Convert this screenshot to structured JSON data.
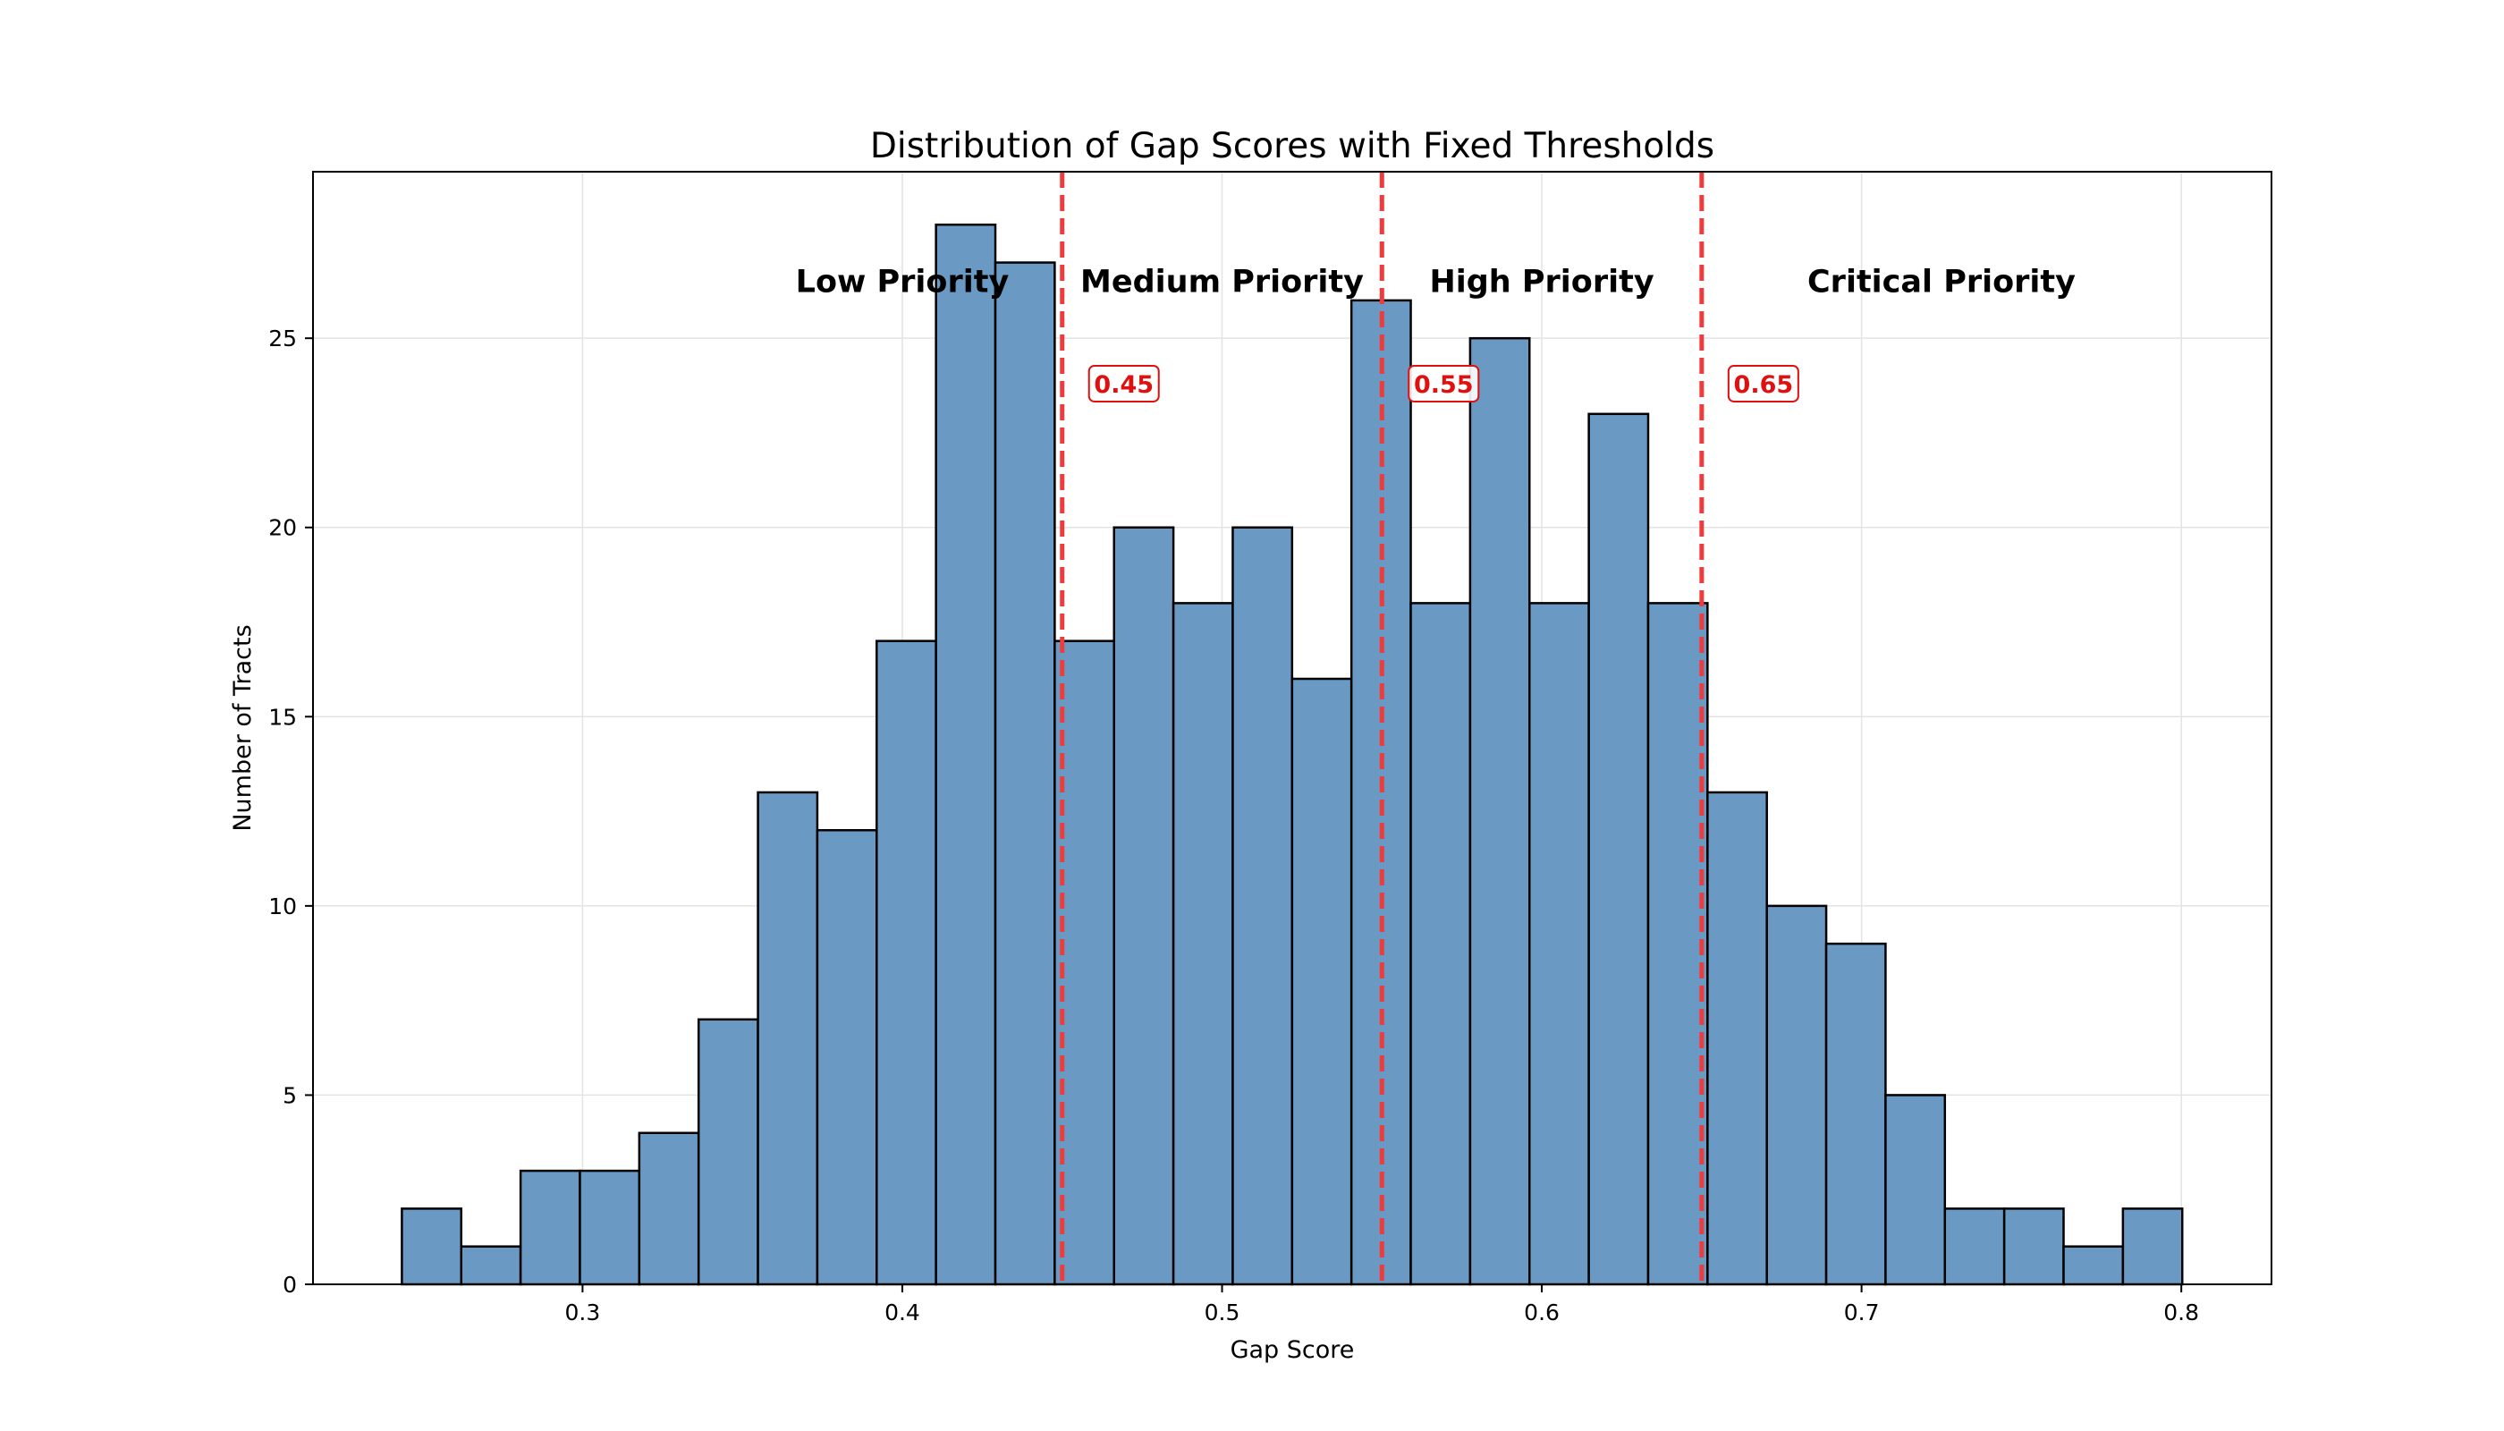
{
  "chart_data": {
    "type": "bar",
    "title": "Distribution of Gap Scores with Fixed Thresholds",
    "xlabel": "Gap Score",
    "ylabel": "Number of Tracts",
    "xlim": [
      0.2157,
      0.8282
    ],
    "ylim": [
      0,
      29.4
    ],
    "grid": true,
    "xticks": [
      "0.3",
      "0.4",
      "0.5",
      "0.6",
      "0.7",
      "0.8"
    ],
    "xtick_values": [
      0.3,
      0.4,
      0.5,
      0.6,
      0.7,
      0.8
    ],
    "yticks": [
      "0",
      "5",
      "10",
      "15",
      "20",
      "25"
    ],
    "ytick_values": [
      0,
      5,
      10,
      15,
      20,
      25
    ],
    "bins": {
      "start": 0.2435,
      "width": 0.01856,
      "counts": [
        2,
        1,
        3,
        3,
        4,
        7,
        13,
        12,
        17,
        28,
        27,
        17,
        20,
        18,
        20,
        16,
        26,
        18,
        25,
        18,
        23,
        18,
        13,
        10,
        9,
        5,
        2,
        2,
        1,
        2
      ]
    },
    "bar_color": "#6A9AC4",
    "bar_edge_color": "#000000",
    "thresholds": [
      {
        "value": 0.45,
        "label": "0.45"
      },
      {
        "value": 0.55,
        "label": "0.55"
      },
      {
        "value": 0.65,
        "label": "0.65"
      }
    ],
    "threshold_color": "#EE3B3B",
    "threshold_label_y": 23.8,
    "regions": [
      {
        "label": "Low Priority",
        "x": 0.4,
        "y": 26.5
      },
      {
        "label": "Medium Priority",
        "x": 0.5,
        "y": 26.5
      },
      {
        "label": "High Priority",
        "x": 0.6,
        "y": 26.5
      },
      {
        "label": "Critical Priority",
        "x": 0.725,
        "y": 26.5
      }
    ]
  }
}
